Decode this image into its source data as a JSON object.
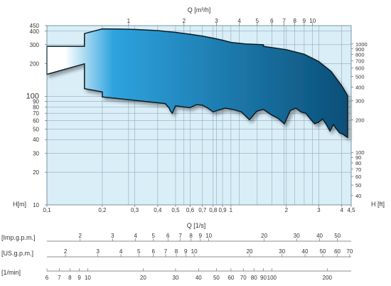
{
  "chart_data": {
    "type": "area",
    "title": "",
    "top_axis": {
      "label": "Q [m³/h]",
      "ticks": [
        {
          "value": 1,
          "label": "1"
        },
        {
          "value": 2,
          "label": "2"
        },
        {
          "value": 3,
          "label": "3"
        },
        {
          "value": 4,
          "label": "4"
        },
        {
          "value": 5,
          "label": "5"
        },
        {
          "value": 6,
          "label": "6"
        },
        {
          "value": 7,
          "label": "7"
        },
        {
          "value": 8,
          "label": "8"
        },
        {
          "value": 9,
          "label": "9"
        },
        {
          "value": 10,
          "label": "10"
        }
      ]
    },
    "bottom_axis": {
      "label": "Q [1/s]",
      "scale": "log",
      "range": [
        0.1,
        4.5
      ],
      "ticks": [
        {
          "value": 0.1,
          "label": "0,1"
        },
        {
          "value": 0.2,
          "label": "0,2"
        },
        {
          "value": 0.3,
          "label": "0,3"
        },
        {
          "value": 0.4,
          "label": "0,4"
        },
        {
          "value": 0.5,
          "label": "0,5"
        },
        {
          "value": 0.6,
          "label": "0,6"
        },
        {
          "value": 0.7,
          "label": "0,7"
        },
        {
          "value": 0.8,
          "label": "0,8"
        },
        {
          "value": 0.9,
          "label": "0,9"
        },
        {
          "value": 1,
          "label": "1"
        },
        {
          "value": 2,
          "label": "2"
        },
        {
          "value": 3,
          "label": "3"
        },
        {
          "value": 4,
          "label": "4"
        },
        {
          "value": 4.5,
          "label": "4,5"
        }
      ]
    },
    "left_axis": {
      "label": "H[m]",
      "scale": "log",
      "range": [
        10,
        450
      ],
      "ticks": [
        {
          "value": 10,
          "label": "10"
        },
        {
          "value": 20,
          "label": "20"
        },
        {
          "value": 30,
          "label": "30"
        },
        {
          "value": 40,
          "label": "40"
        },
        {
          "value": 50,
          "label": "50"
        },
        {
          "value": 60,
          "label": "60"
        },
        {
          "value": 70,
          "label": "70"
        },
        {
          "value": 80,
          "label": "80"
        },
        {
          "value": 90,
          "label": "90"
        },
        {
          "value": 100,
          "label": "100",
          "large": true
        },
        {
          "value": 200,
          "label": "200"
        },
        {
          "value": 300,
          "label": "300"
        },
        {
          "value": 400,
          "label": "400"
        },
        {
          "value": 450,
          "label": "450"
        }
      ]
    },
    "right_axis": {
      "label": "H [ft]",
      "ticks": [
        {
          "value": 40,
          "label": "40"
        },
        {
          "value": 50,
          "label": "50"
        },
        {
          "value": 60,
          "label": "60"
        },
        {
          "value": 70,
          "label": "70"
        },
        {
          "value": 80,
          "label": "80"
        },
        {
          "value": 90,
          "label": "90"
        },
        {
          "value": 100,
          "label": "100"
        },
        {
          "value": 200,
          "label": "200"
        },
        {
          "value": 300,
          "label": "300"
        },
        {
          "value": 400,
          "label": "400"
        },
        {
          "value": 500,
          "label": "500"
        },
        {
          "value": 600,
          "label": "600"
        },
        {
          "value": 700,
          "label": "700"
        },
        {
          "value": 800,
          "label": "800"
        },
        {
          "value": 900,
          "label": "900"
        },
        {
          "value": 1000,
          "label": "1000"
        }
      ]
    },
    "area_outline": {
      "q": [
        0.1,
        0.16,
        0.16,
        0.2,
        0.25,
        0.3,
        0.4,
        0.5,
        0.6,
        0.7,
        0.8,
        0.9,
        1.0,
        1.2,
        1.5,
        1.5,
        2,
        2.5,
        3,
        3.5,
        4,
        4.3,
        4.3,
        4.2,
        4.05,
        3.9,
        3.75,
        3.6,
        3.45,
        3.3,
        3.15,
        3.0,
        2.85,
        2.7,
        2.55,
        2.4,
        2.25,
        2.1,
        1.95,
        1.8,
        1.65,
        1.5,
        1.38,
        1.26,
        1.14,
        1.02,
        0.93,
        0.86,
        0.8,
        0.75,
        0.7,
        0.65,
        0.6,
        0.55,
        0.5,
        0.49,
        0.48,
        0.47,
        0.46,
        0.45,
        0.44,
        0.2,
        0.2,
        0.16,
        0.16,
        0.1
      ],
      "h": [
        290,
        290,
        380,
        420,
        418,
        415,
        405,
        390,
        375,
        360,
        345,
        330,
        315,
        305,
        300,
        290,
        270,
        245,
        210,
        170,
        125,
        102,
        42,
        43,
        45,
        46,
        50,
        55,
        48,
        55,
        62,
        58,
        56,
        62,
        70,
        72,
        78,
        74,
        56,
        63,
        68,
        76,
        73,
        61,
        72,
        76,
        78,
        75,
        72,
        78,
        83,
        84,
        79,
        80,
        82,
        76,
        70,
        73,
        79,
        82,
        86,
        99,
        110,
        118,
        200,
        160
      ]
    },
    "secondary_scales": [
      {
        "label": "[Imp.g.p.m.]",
        "ticks": [
          {
            "value": 2,
            "label": "2"
          },
          {
            "value": 3,
            "label": "3"
          },
          {
            "value": 4,
            "label": "4"
          },
          {
            "value": 5,
            "label": "5"
          },
          {
            "value": 6,
            "label": "6"
          },
          {
            "value": 7,
            "label": "7"
          },
          {
            "value": 8,
            "label": "8"
          },
          {
            "value": 9,
            "label": "9"
          },
          {
            "value": 10,
            "label": "10"
          },
          {
            "value": 20,
            "label": "20"
          },
          {
            "value": 30,
            "label": "30"
          },
          {
            "value": 40,
            "label": "40"
          },
          {
            "value": 50,
            "label": "50"
          }
        ]
      },
      {
        "label": "[US.g.p.m.]",
        "ticks": [
          {
            "value": 2,
            "label": "2"
          },
          {
            "value": 3,
            "label": "3"
          },
          {
            "value": 4,
            "label": "4"
          },
          {
            "value": 5,
            "label": "5"
          },
          {
            "value": 6,
            "label": "6"
          },
          {
            "value": 7,
            "label": "7"
          },
          {
            "value": 8,
            "label": "8"
          },
          {
            "value": 9,
            "label": "9"
          },
          {
            "value": 10,
            "label": "10"
          },
          {
            "value": 20,
            "label": "20"
          },
          {
            "value": 30,
            "label": "30"
          },
          {
            "value": 40,
            "label": "40"
          },
          {
            "value": 50,
            "label": "50"
          },
          {
            "value": 60,
            "label": "60"
          },
          {
            "value": 70,
            "label": "70"
          }
        ]
      },
      {
        "label": "[1/min]",
        "ticks": [
          {
            "value": 6,
            "label": "6"
          },
          {
            "value": 7,
            "label": "7"
          },
          {
            "value": 8,
            "label": "8"
          },
          {
            "value": 9,
            "label": "9"
          },
          {
            "value": 10,
            "label": "10"
          },
          {
            "value": 20,
            "label": "20"
          },
          {
            "value": 30,
            "label": "30"
          },
          {
            "value": 40,
            "label": "40"
          },
          {
            "value": 50,
            "label": "50"
          },
          {
            "value": 60,
            "label": "60"
          },
          {
            "value": 70,
            "label": "70"
          },
          {
            "value": 80,
            "label": "80"
          },
          {
            "value": 90,
            "label": "90"
          },
          {
            "value": 100,
            "label": "100"
          },
          {
            "value": 200,
            "label": "200"
          }
        ]
      }
    ],
    "grid": true,
    "colors": {
      "plot_background": "#daeef8",
      "grid": "#7f9cad",
      "area_light": "#ffffff",
      "area_mid": "#2ea3df",
      "area_dark": "#0b4f78",
      "outline": "#0d1b24"
    }
  }
}
